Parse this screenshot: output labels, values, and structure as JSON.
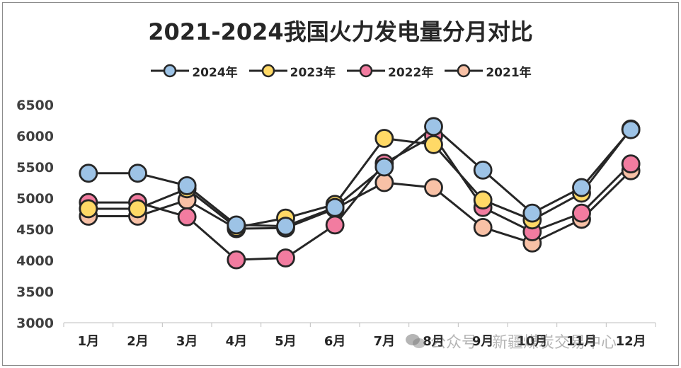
{
  "chart_data": {
    "type": "line",
    "title": "2021-2024我国火力发电量分月对比",
    "categories": [
      "1月",
      "2月",
      "3月",
      "4月",
      "5月",
      "6月",
      "7月",
      "8月",
      "9月",
      "10月",
      "11月",
      "12月"
    ],
    "ylim": [
      3000,
      6500
    ],
    "yticks": [
      3000,
      3500,
      4000,
      4500,
      5000,
      5500,
      6000,
      6500
    ],
    "xlabel": "",
    "ylabel": "",
    "legend_position": "top",
    "grid": false,
    "series": [
      {
        "name": "2024年",
        "color": "#9DC3E6",
        "values": [
          5400,
          5400,
          5200,
          4570,
          4550,
          4850,
          5500,
          6150,
          5450,
          4760,
          5170,
          6100
        ]
      },
      {
        "name": "2023年",
        "color": "#FFD966",
        "values": [
          4830,
          4830,
          5150,
          4530,
          4680,
          4900,
          5960,
          5860,
          4970,
          4650,
          5080,
          6110
        ]
      },
      {
        "name": "2022年",
        "color": "#F27CA0",
        "values": [
          4930,
          4930,
          4700,
          4010,
          4040,
          4570,
          5560,
          6000,
          4850,
          4460,
          4760,
          5550
        ]
      },
      {
        "name": "2021年",
        "color": "#F8C1A6",
        "values": [
          4710,
          4710,
          4970,
          4510,
          4520,
          4830,
          5250,
          5170,
          4530,
          4280,
          4660,
          5440
        ]
      }
    ]
  },
  "watermark": {
    "text": "公众号 · 新疆煤炭交易中心"
  }
}
